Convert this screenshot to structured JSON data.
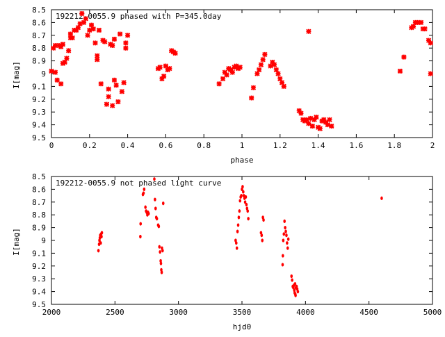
{
  "chart_data": [
    {
      "type": "scatter",
      "title": "192212-0055.9 phased with P=345.0day",
      "xlabel": "phase",
      "ylabel": "I[mag]",
      "xlim": [
        0,
        2
      ],
      "ylim": [
        9.5,
        8.5
      ],
      "y_inverted": true,
      "xticks": [
        "0",
        "0.2",
        "0.4",
        "0.6",
        "0.8",
        "1",
        "1.2",
        "1.4",
        "1.6",
        "1.8",
        "2"
      ],
      "xtick_values": [
        0,
        0.2,
        0.4,
        0.6,
        0.8,
        1.0,
        1.2,
        1.4,
        1.6,
        1.8,
        2.0
      ],
      "yticks": [
        "8.5",
        "8.6",
        "8.7",
        "8.8",
        "8.9",
        "9",
        "9.1",
        "9.2",
        "9.3",
        "9.4",
        "9.5"
      ],
      "ytick_values": [
        8.5,
        8.6,
        8.7,
        8.8,
        8.9,
        9.0,
        9.1,
        9.2,
        9.3,
        9.4,
        9.5
      ],
      "grid": false,
      "marker_color": "#ff0000",
      "marker": "cross",
      "points": [
        [
          0.0,
          8.98
        ],
        [
          0.01,
          8.8
        ],
        [
          0.02,
          8.78
        ],
        [
          0.02,
          8.99
        ],
        [
          0.03,
          9.05
        ],
        [
          0.04,
          8.78
        ],
        [
          0.05,
          8.79
        ],
        [
          0.05,
          9.08
        ],
        [
          0.06,
          8.77
        ],
        [
          0.06,
          8.92
        ],
        [
          0.07,
          8.91
        ],
        [
          0.08,
          8.88
        ],
        [
          0.09,
          8.82
        ],
        [
          0.1,
          8.72
        ],
        [
          0.1,
          8.69
        ],
        [
          0.11,
          8.72
        ],
        [
          0.12,
          8.66
        ],
        [
          0.13,
          8.66
        ],
        [
          0.14,
          8.64
        ],
        [
          0.15,
          8.61
        ],
        [
          0.16,
          8.53
        ],
        [
          0.17,
          8.6
        ],
        [
          0.18,
          8.57
        ],
        [
          0.19,
          8.7
        ],
        [
          0.2,
          8.66
        ],
        [
          0.21,
          8.62
        ],
        [
          0.22,
          8.65
        ],
        [
          0.23,
          8.76
        ],
        [
          0.24,
          8.89
        ],
        [
          0.24,
          8.86
        ],
        [
          0.25,
          8.66
        ],
        [
          0.26,
          9.08
        ],
        [
          0.27,
          8.74
        ],
        [
          0.28,
          8.75
        ],
        [
          0.29,
          9.24
        ],
        [
          0.3,
          9.12
        ],
        [
          0.3,
          9.18
        ],
        [
          0.31,
          8.77
        ],
        [
          0.32,
          8.78
        ],
        [
          0.32,
          9.25
        ],
        [
          0.33,
          9.05
        ],
        [
          0.33,
          8.73
        ],
        [
          0.34,
          9.09
        ],
        [
          0.35,
          9.22
        ],
        [
          0.36,
          8.69
        ],
        [
          0.37,
          9.14
        ],
        [
          0.38,
          9.07
        ],
        [
          0.39,
          8.8
        ],
        [
          0.39,
          8.76
        ],
        [
          0.4,
          8.7
        ],
        [
          0.56,
          8.96
        ],
        [
          0.57,
          8.95
        ],
        [
          0.58,
          9.04
        ],
        [
          0.59,
          9.02
        ],
        [
          0.6,
          8.94
        ],
        [
          0.61,
          8.97
        ],
        [
          0.62,
          8.96
        ],
        [
          0.63,
          8.82
        ],
        [
          0.64,
          8.83
        ],
        [
          0.65,
          8.84
        ],
        [
          0.88,
          9.08
        ],
        [
          0.9,
          9.04
        ],
        [
          0.91,
          8.99
        ],
        [
          0.92,
          9.01
        ],
        [
          0.93,
          8.96
        ],
        [
          0.94,
          8.97
        ],
        [
          0.95,
          8.99
        ],
        [
          0.96,
          8.95
        ],
        [
          0.97,
          8.94
        ],
        [
          0.98,
          8.96
        ],
        [
          0.99,
          8.95
        ],
        [
          1.05,
          9.19
        ],
        [
          1.06,
          9.11
        ],
        [
          1.08,
          9.0
        ],
        [
          1.09,
          8.97
        ],
        [
          1.1,
          8.93
        ],
        [
          1.11,
          8.89
        ],
        [
          1.12,
          8.85
        ],
        [
          1.15,
          8.94
        ],
        [
          1.16,
          8.91
        ],
        [
          1.17,
          8.93
        ],
        [
          1.18,
          8.97
        ],
        [
          1.19,
          9.0
        ],
        [
          1.2,
          9.04
        ],
        [
          1.21,
          9.07
        ],
        [
          1.22,
          9.1
        ],
        [
          1.3,
          9.29
        ],
        [
          1.31,
          9.31
        ],
        [
          1.32,
          9.36
        ],
        [
          1.33,
          9.37
        ],
        [
          1.34,
          9.36
        ],
        [
          1.35,
          9.39
        ],
        [
          1.35,
          8.67
        ],
        [
          1.36,
          9.35
        ],
        [
          1.37,
          9.41
        ],
        [
          1.38,
          9.36
        ],
        [
          1.39,
          9.34
        ],
        [
          1.4,
          9.42
        ],
        [
          1.41,
          9.43
        ],
        [
          1.42,
          9.37
        ],
        [
          1.43,
          9.36
        ],
        [
          1.44,
          9.38
        ],
        [
          1.45,
          9.4
        ],
        [
          1.46,
          9.36
        ],
        [
          1.47,
          9.41
        ],
        [
          1.83,
          8.98
        ],
        [
          1.85,
          8.87
        ],
        [
          1.89,
          8.64
        ],
        [
          1.9,
          8.63
        ],
        [
          1.91,
          8.6
        ],
        [
          1.92,
          8.6
        ],
        [
          1.93,
          8.6
        ],
        [
          1.94,
          8.6
        ],
        [
          1.95,
          8.65
        ],
        [
          1.96,
          8.65
        ],
        [
          1.98,
          8.74
        ],
        [
          1.99,
          8.76
        ],
        [
          1.99,
          9.0
        ]
      ]
    },
    {
      "type": "scatter",
      "title": "192212-0055.9 not phased light curve",
      "xlabel": "hjd0",
      "ylabel": "I[mag]",
      "xlim": [
        2000,
        5000
      ],
      "ylim": [
        9.5,
        8.5
      ],
      "y_inverted": true,
      "xticks": [
        "2000",
        "2500",
        "3000",
        "3500",
        "4000",
        "4500",
        "5000"
      ],
      "xtick_values": [
        2000,
        2500,
        3000,
        3500,
        4000,
        4500,
        5000
      ],
      "yticks": [
        "8.5",
        "8.6",
        "8.7",
        "8.8",
        "8.9",
        "9",
        "9.1",
        "9.2",
        "9.3",
        "9.4",
        "9.5"
      ],
      "ytick_values": [
        8.5,
        8.6,
        8.7,
        8.8,
        8.9,
        9.0,
        9.1,
        9.2,
        9.3,
        9.4,
        9.5
      ],
      "grid": false,
      "marker_color": "#ff0000",
      "marker": "dot",
      "points": [
        [
          2370,
          9.08
        ],
        [
          2375,
          9.03
        ],
        [
          2378,
          9.0
        ],
        [
          2381,
          8.98
        ],
        [
          2384,
          8.96
        ],
        [
          2388,
          9.02
        ],
        [
          2391,
          8.95
        ],
        [
          2394,
          8.97
        ],
        [
          2397,
          8.94
        ],
        [
          2700,
          8.97
        ],
        [
          2702,
          8.87
        ],
        [
          2720,
          8.64
        ],
        [
          2725,
          8.63
        ],
        [
          2730,
          8.6
        ],
        [
          2740,
          8.74
        ],
        [
          2745,
          8.77
        ],
        [
          2750,
          8.78
        ],
        [
          2755,
          8.8
        ],
        [
          2760,
          8.78
        ],
        [
          2765,
          8.79
        ],
        [
          2810,
          8.52
        ],
        [
          2815,
          8.68
        ],
        [
          2820,
          8.75
        ],
        [
          2825,
          8.82
        ],
        [
          2830,
          8.83
        ],
        [
          2840,
          8.88
        ],
        [
          2845,
          8.89
        ],
        [
          2850,
          9.05
        ],
        [
          2855,
          9.09
        ],
        [
          2860,
          9.16
        ],
        [
          2862,
          9.18
        ],
        [
          2865,
          9.23
        ],
        [
          2868,
          9.25
        ],
        [
          2870,
          9.06
        ],
        [
          2875,
          9.08
        ],
        [
          2880,
          8.71
        ],
        [
          3450,
          9.0
        ],
        [
          3455,
          9.02
        ],
        [
          3460,
          9.06
        ],
        [
          3465,
          8.93
        ],
        [
          3470,
          8.88
        ],
        [
          3475,
          8.82
        ],
        [
          3480,
          8.77
        ],
        [
          3485,
          8.69
        ],
        [
          3490,
          8.66
        ],
        [
          3495,
          8.65
        ],
        [
          3500,
          8.6
        ],
        [
          3505,
          8.58
        ],
        [
          3510,
          8.62
        ],
        [
          3515,
          8.65
        ],
        [
          3520,
          8.67
        ],
        [
          3525,
          8.7
        ],
        [
          3530,
          8.66
        ],
        [
          3535,
          8.72
        ],
        [
          3540,
          8.75
        ],
        [
          3545,
          8.77
        ],
        [
          3550,
          8.83
        ],
        [
          3650,
          8.94
        ],
        [
          3655,
          8.96
        ],
        [
          3660,
          9.0
        ],
        [
          3665,
          8.82
        ],
        [
          3670,
          8.84
        ],
        [
          3820,
          9.19
        ],
        [
          3822,
          9.12
        ],
        [
          3825,
          9.0
        ],
        [
          3830,
          8.95
        ],
        [
          3835,
          8.85
        ],
        [
          3840,
          8.9
        ],
        [
          3845,
          8.93
        ],
        [
          3850,
          8.96
        ],
        [
          3855,
          9.02
        ],
        [
          3860,
          9.06
        ],
        [
          3865,
          8.99
        ],
        [
          3890,
          9.28
        ],
        [
          3895,
          9.31
        ],
        [
          3900,
          9.36
        ],
        [
          3905,
          9.37
        ],
        [
          3910,
          9.35
        ],
        [
          3912,
          9.39
        ],
        [
          3915,
          9.41
        ],
        [
          3918,
          9.34
        ],
        [
          3920,
          9.42
        ],
        [
          3922,
          9.43
        ],
        [
          3925,
          9.37
        ],
        [
          3930,
          9.36
        ],
        [
          3935,
          9.38
        ],
        [
          3940,
          9.4
        ],
        [
          4600,
          8.67
        ]
      ]
    }
  ]
}
